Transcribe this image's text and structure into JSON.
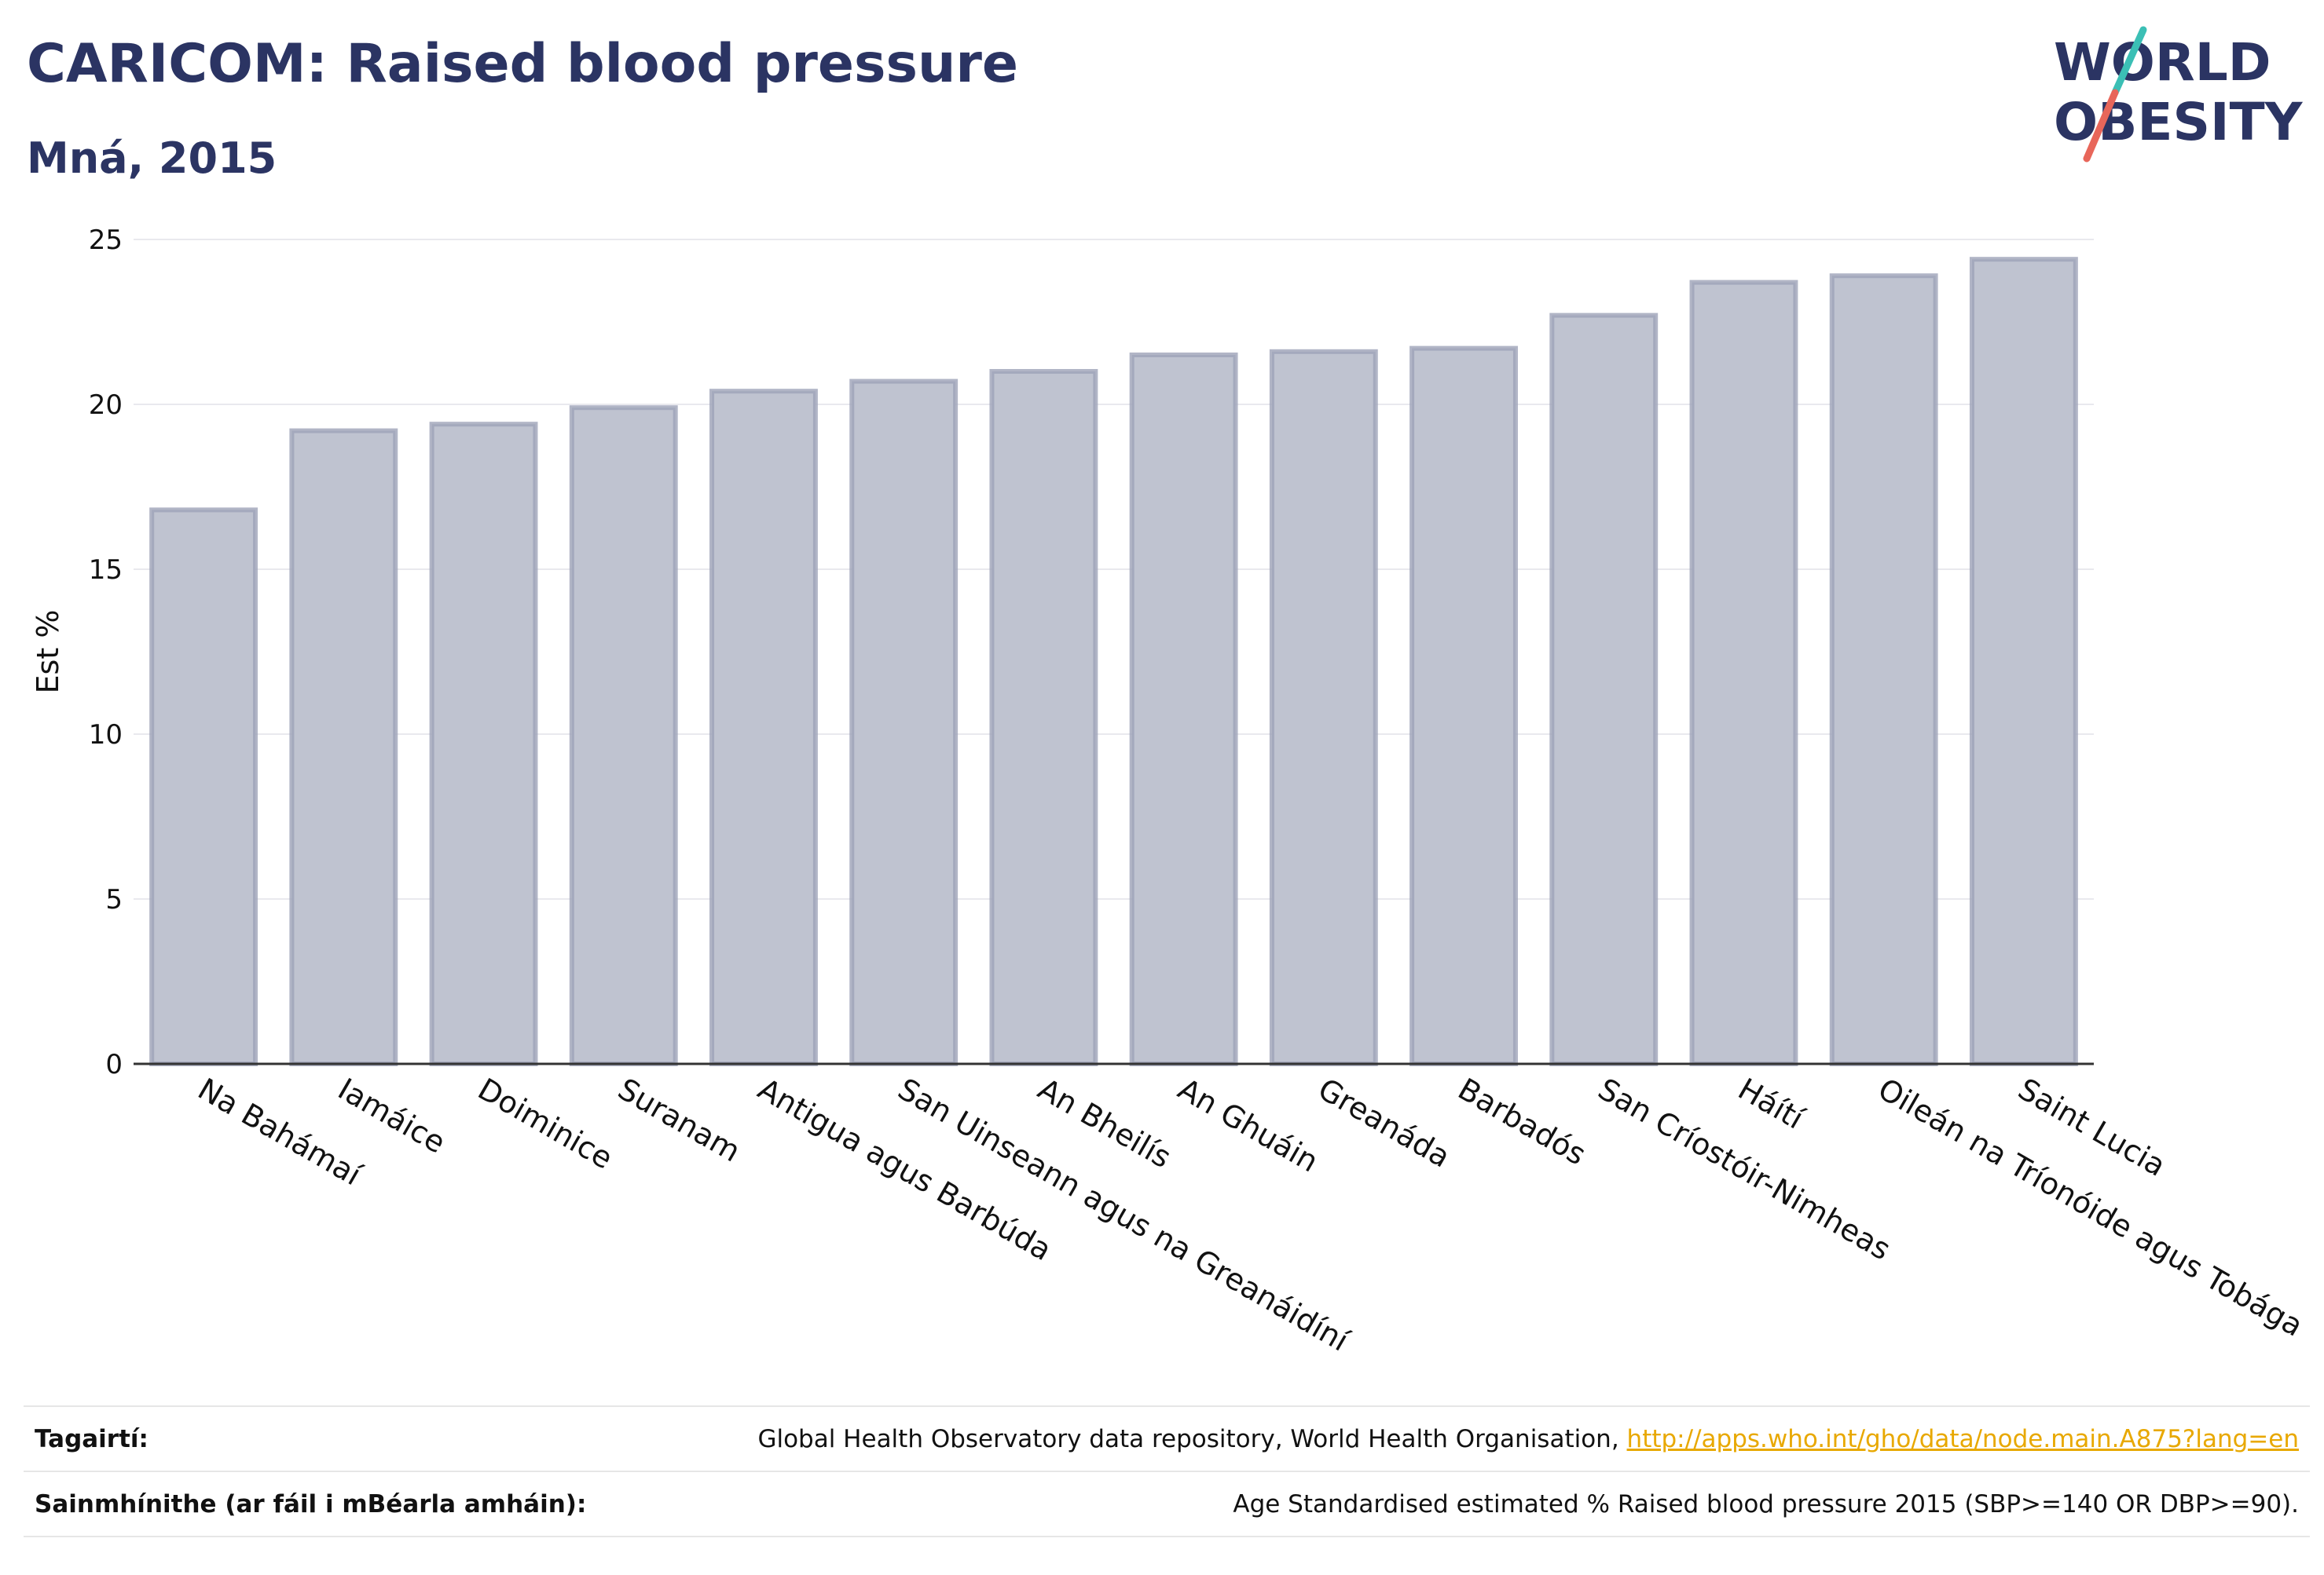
{
  "header": {
    "title": "CARICOM: Raised blood pressure",
    "subtitle": "Mná, 2015"
  },
  "logo": {
    "line1": "WORLD",
    "line2": "OBESITY",
    "accent_teal": "#3bbfb5",
    "accent_red": "#e8665a",
    "text_color": "#2b3463"
  },
  "chart_data": {
    "type": "bar",
    "title": "CARICOM: Raised blood pressure",
    "subtitle": "Mná, 2015",
    "xlabel": "",
    "ylabel": "Est %",
    "ylim": [
      0,
      25
    ],
    "yticks": [
      0,
      5,
      10,
      15,
      20,
      25
    ],
    "grid": true,
    "bar_fill": "#bfc3d0",
    "bar_stroke": "#9ea3b8",
    "categories": [
      "Na Bahámaí",
      "Iamáice",
      "Doiminice",
      "Suranam",
      "Antigua agus Barbúda",
      "San Uinseann agus na Greanáidíní",
      "An Bheilís",
      "An Ghuáin",
      "Greanáda",
      "Barbadós",
      "San Críostóir-Nimheas",
      "Háítí",
      "Oileán na Tríonóide agus Tobága",
      "Saint Lucia"
    ],
    "values": [
      16.8,
      19.2,
      19.4,
      19.9,
      20.4,
      20.7,
      21.0,
      21.5,
      21.6,
      21.7,
      22.7,
      23.7,
      23.9,
      24.4
    ]
  },
  "footer": {
    "references_label": "Tagairtí:",
    "references_text": "Global Health Observatory data repository, World Health Organisation, ",
    "references_link": "http://apps.who.int/gho/data/node.main.A875?lang=en",
    "definitions_label": "Sainmhínithe (ar fáil i mBéarla amháin):",
    "definitions_text": "Age Standardised estimated % Raised blood pressure 2015 (SBP>=140 OR DBP>=90)."
  }
}
